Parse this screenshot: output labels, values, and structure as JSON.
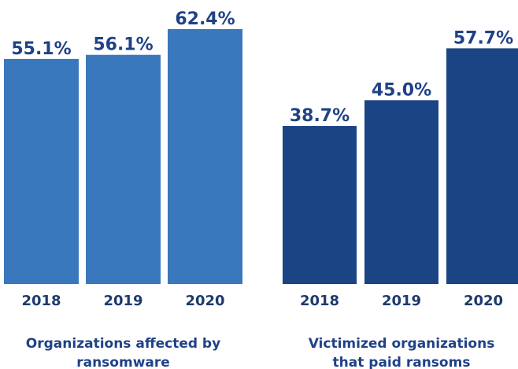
{
  "chart_data": [
    {
      "type": "bar",
      "title": [
        "Organizations affected by",
        "ransomware"
      ],
      "categories": [
        "2018",
        "2019",
        "2020"
      ],
      "values": [
        55.1,
        56.1,
        62.4
      ],
      "value_labels": [
        "55.1%",
        "56.1%",
        "62.4%"
      ],
      "color": "#3a78bd"
    },
    {
      "type": "bar",
      "title": [
        "Victimized organizations",
        "that paid ransoms"
      ],
      "categories": [
        "2018",
        "2019",
        "2020"
      ],
      "values": [
        38.7,
        45.0,
        57.7
      ],
      "value_labels": [
        "38.7%",
        "45.0%",
        "57.7%"
      ],
      "color": "#1b4485"
    }
  ]
}
